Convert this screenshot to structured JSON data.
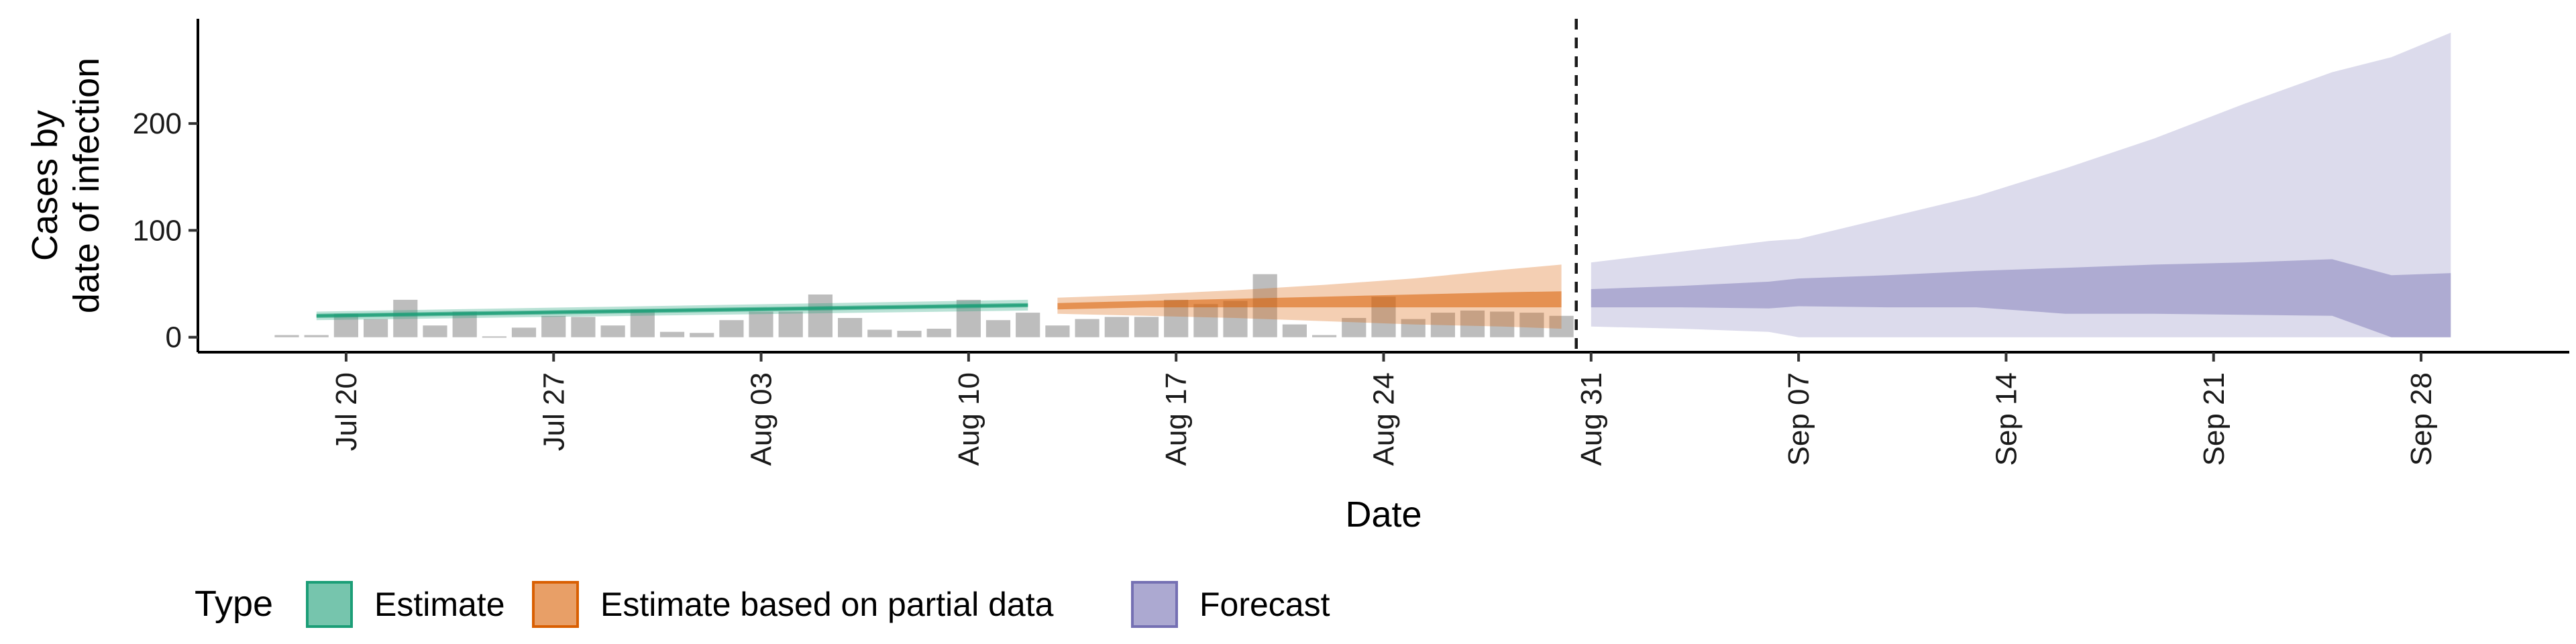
{
  "chart_data": {
    "type": "area",
    "x_axis": {
      "title": "Date",
      "tick_labels": [
        "Jul 20",
        "Jul 27",
        "Aug 03",
        "Aug 10",
        "Aug 17",
        "Aug 24",
        "Aug 31",
        "Sep 07",
        "Sep 14",
        "Sep 21",
        "Sep 28"
      ],
      "tick_dates": [
        "2020-07-20",
        "2020-07-27",
        "2020-08-03",
        "2020-08-10",
        "2020-08-17",
        "2020-08-24",
        "2020-08-31",
        "2020-09-07",
        "2020-09-14",
        "2020-09-21",
        "2020-09-28"
      ],
      "range": [
        "2020-07-15",
        "2020-10-03"
      ]
    },
    "y_axis": {
      "title_lines": [
        "Cases by",
        "date of infection"
      ],
      "ticks": [
        0,
        100,
        200
      ],
      "range": [
        -14,
        298
      ]
    },
    "forecast_start": "2020-08-30",
    "observed_cases": {
      "dates": [
        "2020-07-18",
        "2020-07-19",
        "2020-07-20",
        "2020-07-21",
        "2020-07-22",
        "2020-07-23",
        "2020-07-24",
        "2020-07-25",
        "2020-07-26",
        "2020-07-27",
        "2020-07-28",
        "2020-07-29",
        "2020-07-30",
        "2020-07-31",
        "2020-08-01",
        "2020-08-02",
        "2020-08-03",
        "2020-08-04",
        "2020-08-05",
        "2020-08-06",
        "2020-08-07",
        "2020-08-08",
        "2020-08-09",
        "2020-08-10",
        "2020-08-11",
        "2020-08-12",
        "2020-08-13",
        "2020-08-14",
        "2020-08-15",
        "2020-08-16",
        "2020-08-17",
        "2020-08-18",
        "2020-08-19",
        "2020-08-20",
        "2020-08-21",
        "2020-08-22",
        "2020-08-23",
        "2020-08-24",
        "2020-08-25",
        "2020-08-26",
        "2020-08-27",
        "2020-08-28",
        "2020-08-29",
        "2020-08-30"
      ],
      "values": [
        2,
        2,
        22,
        17,
        35,
        11,
        24,
        0,
        9,
        20,
        19,
        11,
        26,
        5,
        4,
        16,
        24,
        24,
        40,
        18,
        7,
        6,
        8,
        35,
        16,
        23,
        11,
        17,
        19,
        19,
        35,
        31,
        34,
        59,
        12,
        2,
        18,
        38,
        17,
        23,
        25,
        24,
        23,
        20
      ]
    },
    "series": [
      {
        "name": "Estimate",
        "color": "#1b9e77",
        "dates": [
          "2020-07-19",
          "2020-08-12"
        ],
        "median": [
          20,
          30
        ],
        "inner_lower": [
          18,
          28
        ],
        "inner_upper": [
          22,
          32
        ],
        "outer_lower": [
          16,
          25
        ],
        "outer_upper": [
          24,
          35
        ]
      },
      {
        "name": "Estimate based on partial data",
        "color": "#d95f02",
        "dates": [
          "2020-08-13",
          "2020-08-16",
          "2020-08-19",
          "2020-08-22",
          "2020-08-25",
          "2020-08-28",
          "2020-08-30"
        ],
        "inner_lower": [
          26,
          28,
          28,
          28,
          28,
          28,
          28
        ],
        "inner_upper": [
          32,
          34,
          36,
          38,
          40,
          42,
          43
        ],
        "outer_lower": [
          22,
          20,
          18,
          15,
          12,
          10,
          8
        ],
        "outer_upper": [
          37,
          40,
          44,
          49,
          55,
          63,
          68
        ]
      },
      {
        "name": "Forecast",
        "color": "#7570b3",
        "dates": [
          "2020-08-31",
          "2020-09-03",
          "2020-09-06",
          "2020-09-07",
          "2020-09-10",
          "2020-09-13",
          "2020-09-16",
          "2020-09-19",
          "2020-09-22",
          "2020-09-25",
          "2020-09-27",
          "2020-09-29"
        ],
        "inner_lower": [
          28,
          28,
          27,
          29,
          28,
          28,
          22,
          22,
          21,
          20,
          0,
          0
        ],
        "inner_upper": [
          45,
          48,
          52,
          55,
          58,
          62,
          65,
          68,
          70,
          73,
          58,
          60
        ],
        "outer_lower": [
          10,
          8,
          5,
          0,
          0,
          0,
          0,
          0,
          0,
          0,
          0,
          0
        ],
        "outer_upper": [
          70,
          80,
          90,
          92,
          112,
          132,
          158,
          186,
          218,
          248,
          262,
          285
        ]
      }
    ],
    "legend": {
      "title": "Type",
      "position": "bottom",
      "entries": [
        "Estimate",
        "Estimate based on partial data",
        "Forecast"
      ]
    }
  }
}
